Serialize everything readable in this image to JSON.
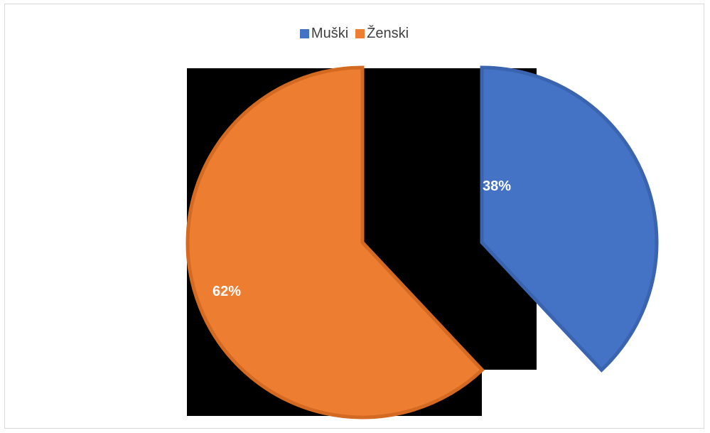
{
  "chart_data": {
    "type": "pie",
    "categories": [
      "Muški",
      "Ženski"
    ],
    "values": [
      38,
      62
    ],
    "data_labels": [
      "38%",
      "62%"
    ],
    "colors": [
      "#4472c4",
      "#ed7d31"
    ],
    "legend_position": "top",
    "title": ""
  }
}
